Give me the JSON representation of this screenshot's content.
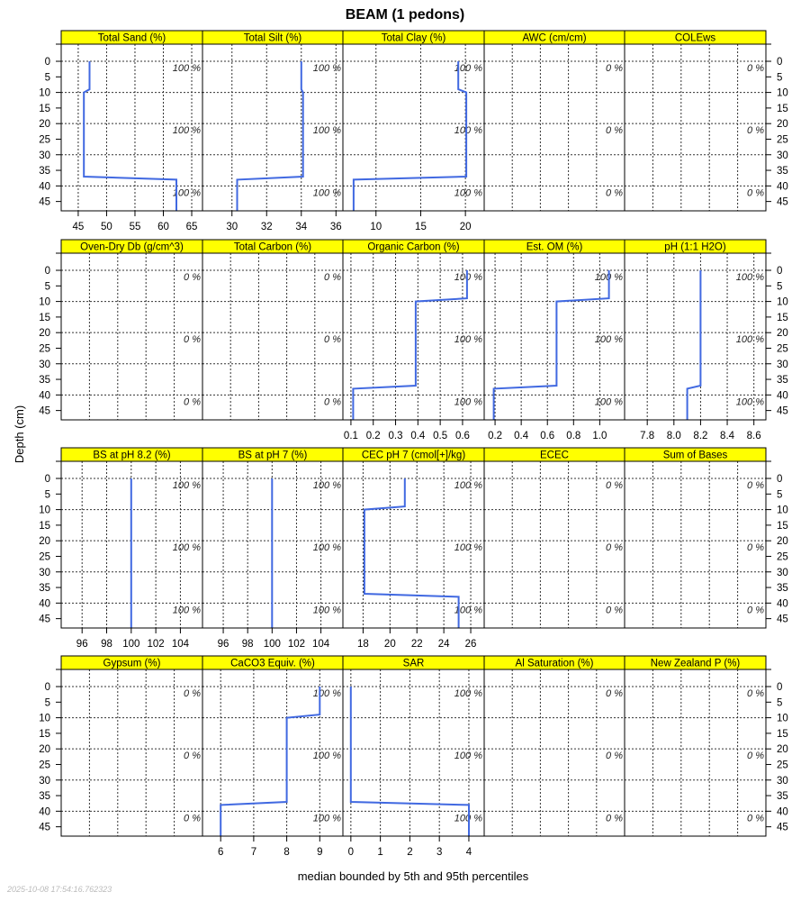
{
  "chart_data": {
    "type": "line",
    "title": "BEAM (1 pedons)",
    "ylabel": "Depth (cm)",
    "xlabel": "median bounded by 5th and 95th percentiles",
    "timestamp": "2025-10-08 17:54:16.762323",
    "ylim": [
      48,
      -5.5
    ],
    "yticks": [
      0,
      5,
      10,
      15,
      20,
      25,
      30,
      35,
      40,
      45
    ],
    "grid": true,
    "line_color": "#4169e1",
    "strip_color": "#ffff00",
    "panels": [
      {
        "title": "Total Sand (%)",
        "pct": [
          "100 %",
          "100 %",
          "100 %"
        ],
        "xlim": [
          42,
          66.9
        ],
        "xticks": [
          45,
          50,
          55,
          60,
          65
        ],
        "median": [
          [
            47,
            0
          ],
          [
            47,
            9
          ],
          [
            46,
            10
          ],
          [
            46,
            37
          ],
          [
            62.3,
            38
          ],
          [
            62.3,
            48
          ]
        ]
      },
      {
        "title": "Total Silt (%)",
        "pct": [
          "100 %",
          "100 %",
          "100 %"
        ],
        "xlim": [
          28.3,
          36.4
        ],
        "xticks": [
          30,
          32,
          34,
          36
        ],
        "median": [
          [
            34,
            0
          ],
          [
            34,
            9
          ],
          [
            34.1,
            10
          ],
          [
            34.1,
            37
          ],
          [
            30.3,
            38
          ],
          [
            30.3,
            48
          ]
        ]
      },
      {
        "title": "Total Clay (%)",
        "pct": [
          "100 %",
          "100 %",
          "100 %"
        ],
        "xlim": [
          6.3,
          22.1
        ],
        "xticks": [
          10,
          15,
          20
        ],
        "median": [
          [
            19.2,
            0
          ],
          [
            19.2,
            9
          ],
          [
            20.1,
            10
          ],
          [
            20.1,
            37
          ],
          [
            7.5,
            38
          ],
          [
            7.5,
            48
          ]
        ]
      },
      {
        "title": "AWC (cm/cm)",
        "pct": [
          "0 %",
          "0 %",
          "0 %"
        ],
        "xlim": null,
        "xticks": [],
        "median": []
      },
      {
        "title": "COLEws",
        "pct": [
          "0 %",
          "0 %",
          "0 %"
        ],
        "xlim": null,
        "xticks": [],
        "median": []
      },
      {
        "title": "Oven-Dry Db (g/cm^3)",
        "pct": [
          "0 %",
          "0 %",
          "0 %"
        ],
        "xlim": null,
        "xticks": [],
        "median": []
      },
      {
        "title": "Total Carbon (%)",
        "pct": [
          "0 %",
          "0 %",
          "0 %"
        ],
        "xlim": null,
        "xticks": [],
        "median": []
      },
      {
        "title": "Organic Carbon (%)",
        "pct": [
          "100 %",
          "100 %",
          "100 %"
        ],
        "xlim": [
          0.064,
          0.697
        ],
        "xticks": [
          0.1,
          0.2,
          0.3,
          0.4,
          0.5,
          0.6
        ],
        "median": [
          [
            0.62,
            0
          ],
          [
            0.62,
            9
          ],
          [
            0.39,
            10
          ],
          [
            0.39,
            37
          ],
          [
            0.11,
            38
          ],
          [
            0.11,
            48
          ]
        ]
      },
      {
        "title": "Est. OM (%)",
        "pct": [
          "100 %",
          "100 %",
          "100 %"
        ],
        "xlim": [
          0.117,
          1.19
        ],
        "xticks": [
          0.2,
          0.4,
          0.6,
          0.8,
          1.0
        ],
        "median": [
          [
            1.07,
            0
          ],
          [
            1.07,
            9
          ],
          [
            0.67,
            10
          ],
          [
            0.67,
            37
          ],
          [
            0.19,
            38
          ],
          [
            0.19,
            48
          ]
        ]
      },
      {
        "title": "pH (1:1 H2O)",
        "pct": [
          "100 %",
          "100 %",
          "100 %"
        ],
        "xlim": [
          7.63,
          8.69
        ],
        "xticks": [
          7.8,
          8.0,
          8.2,
          8.4,
          8.6
        ],
        "median": [
          [
            8.2,
            0
          ],
          [
            8.2,
            37
          ],
          [
            8.1,
            38
          ],
          [
            8.1,
            48
          ]
        ]
      },
      {
        "title": "BS at pH 8.2 (%)",
        "pct": [
          "100 %",
          "100 %",
          "100 %"
        ],
        "xlim": [
          94.3,
          105.8
        ],
        "xticks": [
          96,
          98,
          100,
          102,
          104
        ],
        "median": [
          [
            100,
            0
          ],
          [
            100,
            48
          ]
        ]
      },
      {
        "title": "BS at pH 7 (%)",
        "pct": [
          "100 %",
          "100 %",
          "100 %"
        ],
        "xlim": [
          94.3,
          105.8
        ],
        "xticks": [
          96,
          98,
          100,
          102,
          104
        ],
        "median": [
          [
            100,
            0
          ],
          [
            100,
            48
          ]
        ]
      },
      {
        "title": "CEC pH 7 (cmol[+]/kg)",
        "pct": [
          "100 %",
          "100 %",
          "100 %"
        ],
        "xlim": [
          16.5,
          27
        ],
        "xticks": [
          18,
          20,
          22,
          24,
          26
        ],
        "median": [
          [
            21.1,
            0
          ],
          [
            21.1,
            9
          ],
          [
            18.1,
            10
          ],
          [
            18.1,
            37
          ],
          [
            25.1,
            38
          ],
          [
            25.1,
            48
          ]
        ]
      },
      {
        "title": "ECEC",
        "pct": [
          "0 %",
          "0 %",
          "0 %"
        ],
        "xlim": null,
        "xticks": [],
        "median": []
      },
      {
        "title": "Sum of Bases",
        "pct": [
          "0 %",
          "0 %",
          "0 %"
        ],
        "xlim": null,
        "xticks": [],
        "median": []
      },
      {
        "title": "Gypsum (%)",
        "pct": [
          "0 %",
          "0 %",
          "0 %"
        ],
        "xlim": null,
        "xticks": [],
        "median": []
      },
      {
        "title": "CaCO3 Equiv. (%)",
        "pct": [
          "100 %",
          "100 %",
          "100 %"
        ],
        "xlim": [
          5.45,
          9.7
        ],
        "xticks": [
          6,
          7,
          8,
          9
        ],
        "median": [
          [
            9,
            0
          ],
          [
            9,
            9
          ],
          [
            8,
            10
          ],
          [
            8,
            37
          ],
          [
            6,
            38
          ],
          [
            6,
            48
          ]
        ]
      },
      {
        "title": "SAR",
        "pct": [
          "100 %",
          "100 %",
          "100 %"
        ],
        "xlim": [
          -0.27,
          4.52
        ],
        "xticks": [
          0,
          1,
          2,
          3,
          4
        ],
        "median": [
          [
            0,
            0
          ],
          [
            0,
            37
          ],
          [
            4,
            38
          ],
          [
            4,
            48
          ]
        ]
      },
      {
        "title": "Al Saturation (%)",
        "pct": [
          "0 %",
          "0 %",
          "0 %"
        ],
        "xlim": null,
        "xticks": [],
        "median": []
      },
      {
        "title": "New Zealand P (%)",
        "pct": [
          "0 %",
          "0 %",
          "0 %"
        ],
        "xlim": null,
        "xticks": [],
        "median": []
      }
    ]
  }
}
